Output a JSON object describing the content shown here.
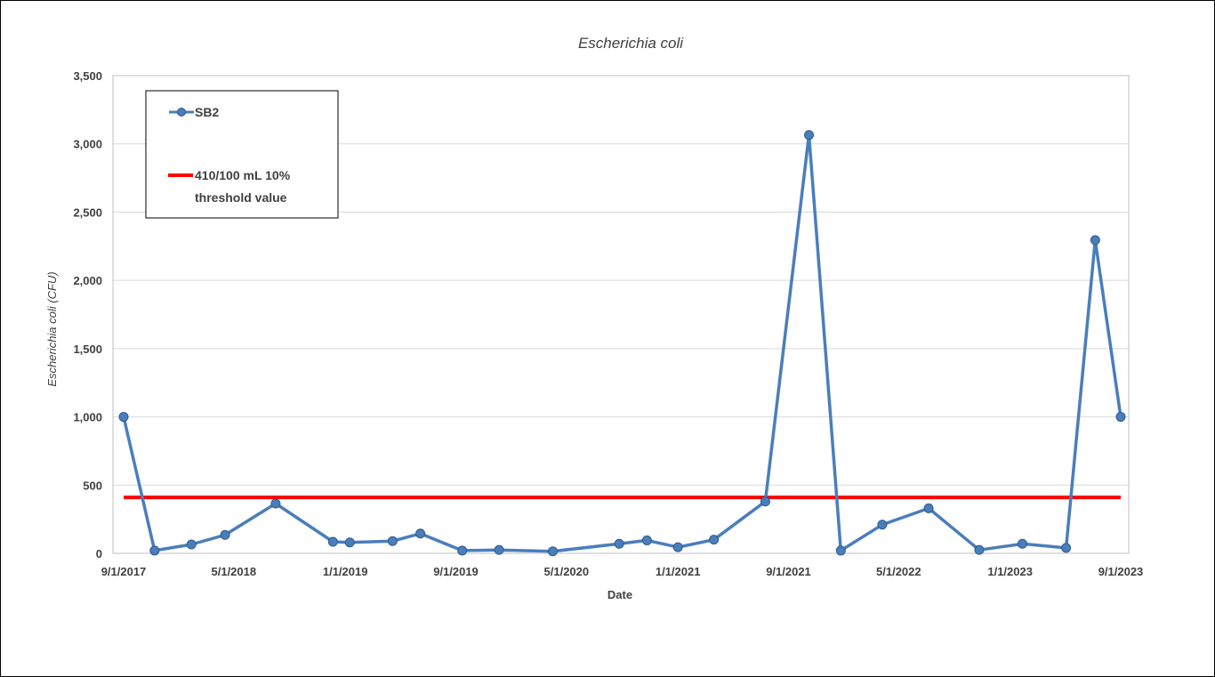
{
  "chart_data": {
    "type": "line",
    "title": "Escherichia coli",
    "xlabel": "Date",
    "ylabel": "Escherichia coli (CFU)",
    "ylim": [
      0,
      3500
    ],
    "y_ticks": [
      0,
      500,
      1000,
      1500,
      2000,
      2500,
      3000,
      3500
    ],
    "y_tick_labels": [
      "0",
      "500",
      "1,000",
      "1,500",
      "2,000",
      "2,500",
      "3,000",
      "3,500"
    ],
    "xlim": [
      "2017-09-01",
      "2023-09-01"
    ],
    "x_ticks": [
      "2017-09-01",
      "2018-05-01",
      "2019-01-01",
      "2019-09-01",
      "2020-05-01",
      "2021-01-01",
      "2021-09-01",
      "2022-05-01",
      "2023-01-01",
      "2023-09-01"
    ],
    "x_tick_labels": [
      "9/1/2017",
      "5/1/2018",
      "1/1/2019",
      "9/1/2019",
      "5/1/2020",
      "1/1/2021",
      "9/1/2021",
      "5/1/2022",
      "1/1/2023",
      "9/1/2023"
    ],
    "grid": "horizontal",
    "legend_position": "top-left",
    "series": [
      {
        "name": "SB2",
        "color": "#4a7ebb",
        "marker": "circle",
        "points": [
          {
            "x": "2017-09-01",
            "y": 1000
          },
          {
            "x": "2017-11-08",
            "y": 20
          },
          {
            "x": "2018-01-28",
            "y": 65
          },
          {
            "x": "2018-04-12",
            "y": 135
          },
          {
            "x": "2018-08-01",
            "y": 365
          },
          {
            "x": "2018-12-05",
            "y": 85
          },
          {
            "x": "2019-01-11",
            "y": 80
          },
          {
            "x": "2019-04-15",
            "y": 90
          },
          {
            "x": "2019-06-15",
            "y": 145
          },
          {
            "x": "2019-09-15",
            "y": 20
          },
          {
            "x": "2019-12-05",
            "y": 25
          },
          {
            "x": "2020-04-01",
            "y": 15
          },
          {
            "x": "2020-08-25",
            "y": 70
          },
          {
            "x": "2020-10-25",
            "y": 95
          },
          {
            "x": "2021-01-01",
            "y": 45
          },
          {
            "x": "2021-03-21",
            "y": 100
          },
          {
            "x": "2021-07-12",
            "y": 380
          },
          {
            "x": "2021-10-16",
            "y": 3065
          },
          {
            "x": "2021-12-25",
            "y": 20
          },
          {
            "x": "2022-03-26",
            "y": 210
          },
          {
            "x": "2022-07-06",
            "y": 330
          },
          {
            "x": "2022-10-25",
            "y": 25
          },
          {
            "x": "2023-01-28",
            "y": 70
          },
          {
            "x": "2023-05-04",
            "y": 40
          },
          {
            "x": "2023-07-07",
            "y": 2295
          },
          {
            "x": "2023-09-01",
            "y": 1000
          }
        ]
      },
      {
        "name": "410/100 mL 10% threshold value",
        "color": "#ff0000",
        "points": [
          {
            "x": "2017-09-01",
            "y": 410
          },
          {
            "x": "2023-09-01",
            "y": 410
          }
        ]
      }
    ]
  },
  "legend": {
    "series_label": "SB2",
    "threshold_line1": "410/100 mL 10%",
    "threshold_line2": "threshold value"
  }
}
